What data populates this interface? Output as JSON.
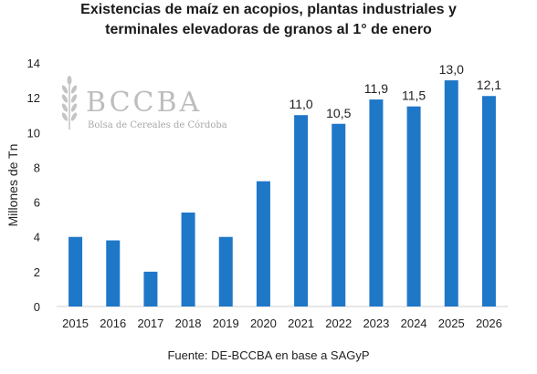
{
  "chart_data": {
    "type": "bar",
    "title_line1": "Existencias de maíz en acopios, plantas industriales y",
    "title_line2": "terminales elevadoras de granos al 1° de enero",
    "ylabel": "Millones de Tn",
    "xlabel": "",
    "ylim": [
      0,
      14
    ],
    "yticks": [
      "0",
      "2",
      "4",
      "6",
      "8",
      "10",
      "12",
      "14"
    ],
    "grid": false,
    "categories": [
      "2015",
      "2016",
      "2017",
      "2018",
      "2019",
      "2020",
      "2021",
      "2022",
      "2023",
      "2024",
      "2025",
      "2026"
    ],
    "values": [
      4.0,
      3.8,
      2.0,
      5.4,
      4.0,
      7.2,
      11.0,
      10.5,
      11.9,
      11.5,
      13.0,
      12.1
    ],
    "data_labels": [
      null,
      null,
      null,
      null,
      null,
      null,
      "11,0",
      "10,5",
      "11,9",
      "11,5",
      "13,0",
      "12,1"
    ],
    "bar_color": "#1f77c8",
    "source": "Fuente: DE-BCCBA en base a SAGyP"
  },
  "logo": {
    "name": "BCCBA",
    "subtitle": "Bolsa de Cereales de Córdoba"
  }
}
